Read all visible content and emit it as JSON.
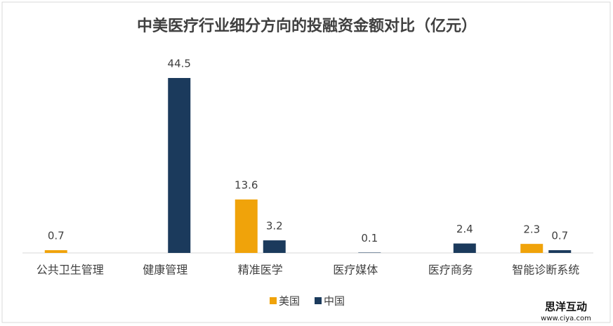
{
  "chart_data": {
    "type": "bar",
    "title": "中美医疗行业细分方向的投融资金额对比（亿元）",
    "categories": [
      "公共卫生管理",
      "健康管理",
      "精准医学",
      "医疗媒体",
      "医疗商务",
      "智能诊断系统"
    ],
    "series": [
      {
        "name": "美国",
        "color": "#f0a30a",
        "values": [
          0.7,
          null,
          13.6,
          null,
          null,
          2.3
        ]
      },
      {
        "name": "中国",
        "color": "#1b3a5c",
        "values": [
          null,
          44.5,
          3.2,
          0.1,
          2.4,
          0.7
        ]
      }
    ],
    "legend": "bottom",
    "watermark": {
      "title": "思洋互动",
      "url": "www.ciya.com"
    }
  }
}
